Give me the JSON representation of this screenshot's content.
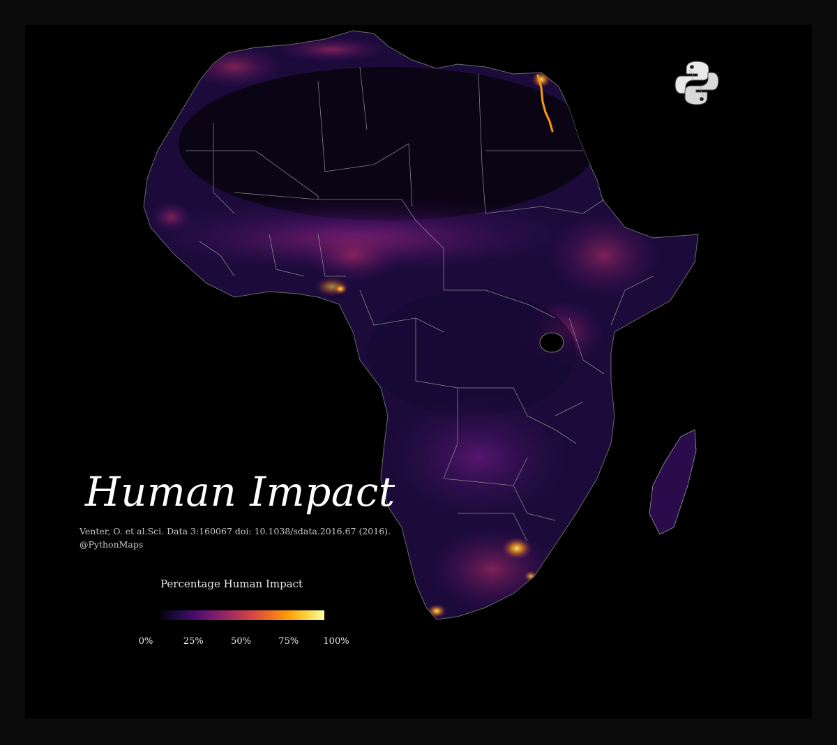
{
  "title": "Human Impact",
  "citation": {
    "source": "Venter, O. et al.Sci. Data 3:160067 doi: 10.1038/sdata.2016.67 (2016).",
    "handle": "@PythonMaps"
  },
  "logo": {
    "icon": "python-logo-icon"
  },
  "legend": {
    "title": "Percentage Human Impact",
    "ticks": [
      {
        "label": "0%",
        "value": 0
      },
      {
        "label": "25%",
        "value": 25
      },
      {
        "label": "50%",
        "value": 50
      },
      {
        "label": "75%",
        "value": 75
      },
      {
        "label": "100%",
        "value": 100
      }
    ],
    "colormap": "inferno",
    "colors": [
      "#000004",
      "#1b0c41",
      "#4a0c6b",
      "#781c6d",
      "#a52c60",
      "#cf4446",
      "#ed6925",
      "#fb9b06",
      "#f7d13d",
      "#fcffa4"
    ]
  },
  "map": {
    "region": "Africa",
    "background": "#000000",
    "land_base_color": "#1c0b3a",
    "border_color": "#9a9a9a"
  }
}
